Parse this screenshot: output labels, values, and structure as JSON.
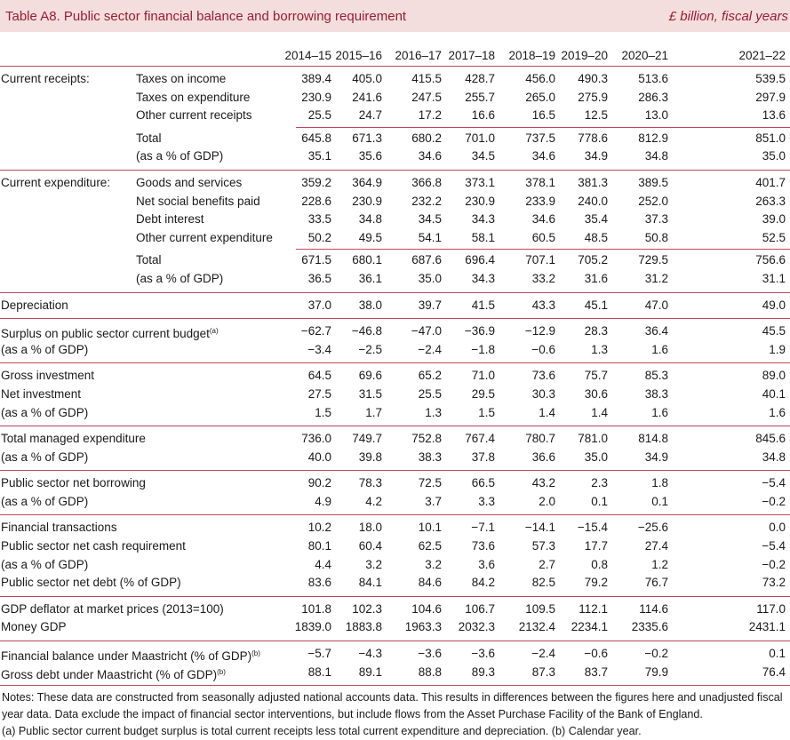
{
  "title": "Table A8. Public sector financial balance and borrowing requirement",
  "unit": "£ billion, fiscal years",
  "years": [
    "2014–15",
    "2015–16",
    "2016–17",
    "2017–18",
    "2018–19",
    "2019–20",
    "2020–21",
    "2021–22"
  ],
  "groups": [
    {
      "rows": [
        {
          "label": "Current receipts:",
          "sublabel": "Taxes on income",
          "values": [
            "389.4",
            "405.0",
            "415.5",
            "428.7",
            "456.0",
            "490.3",
            "513.6",
            "539.5"
          ]
        },
        {
          "sublabel": "Taxes on expenditure",
          "values": [
            "230.9",
            "241.6",
            "247.5",
            "255.7",
            "265.0",
            "275.9",
            "286.3",
            "297.9"
          ]
        },
        {
          "sublabel": "Other current receipts",
          "values": [
            "25.5",
            "24.7",
            "17.2",
            "16.6",
            "16.5",
            "12.5",
            "13.0",
            "13.6"
          ]
        },
        {
          "sublabel": "Total",
          "total": true,
          "values": [
            "645.8",
            "671.3",
            "680.2",
            "701.0",
            "737.5",
            "778.6",
            "812.9",
            "851.0"
          ]
        },
        {
          "sublabel": "(as a % of GDP)",
          "values": [
            "35.1",
            "35.6",
            "34.6",
            "34.5",
            "34.6",
            "34.9",
            "34.8",
            "35.0"
          ]
        }
      ]
    },
    {
      "rows": [
        {
          "label": "Current expenditure:",
          "sublabel": "Goods and services",
          "values": [
            "359.2",
            "364.9",
            "366.8",
            "373.1",
            "378.1",
            "381.3",
            "389.5",
            "401.7"
          ]
        },
        {
          "sublabel": "Net social benefits paid",
          "values": [
            "228.6",
            "230.9",
            "232.2",
            "230.9",
            "233.9",
            "240.0",
            "252.0",
            "263.3"
          ]
        },
        {
          "sublabel": "Debt interest",
          "values": [
            "33.5",
            "34.8",
            "34.5",
            "34.3",
            "34.6",
            "35.4",
            "37.3",
            "39.0"
          ]
        },
        {
          "sublabel": "Other current expenditure",
          "values": [
            "50.2",
            "49.5",
            "54.1",
            "58.1",
            "60.5",
            "48.5",
            "50.8",
            "52.5"
          ]
        },
        {
          "sublabel": "Total",
          "total": true,
          "values": [
            "671.5",
            "680.1",
            "687.6",
            "696.4",
            "707.1",
            "705.2",
            "729.5",
            "756.6"
          ]
        },
        {
          "sublabel": "(as a % of GDP)",
          "values": [
            "36.5",
            "36.1",
            "35.0",
            "34.3",
            "33.2",
            "31.6",
            "31.2",
            "31.1"
          ]
        }
      ]
    },
    {
      "rows": [
        {
          "label": "Depreciation",
          "values": [
            "37.0",
            "38.0",
            "39.7",
            "41.5",
            "43.3",
            "45.1",
            "47.0",
            "49.0"
          ]
        }
      ]
    },
    {
      "rows": [
        {
          "label": "Surplus on public sector current budget",
          "sup": "(a)",
          "values": [
            "−62.7",
            "−46.8",
            "−47.0",
            "−36.9",
            "−12.9",
            "28.3",
            "36.4",
            "45.5"
          ]
        },
        {
          "label": "(as a % of GDP)",
          "values": [
            "−3.4",
            "−2.5",
            "−2.4",
            "−1.8",
            "−0.6",
            "1.3",
            "1.6",
            "1.9"
          ]
        }
      ]
    },
    {
      "rows": [
        {
          "label": "Gross investment",
          "values": [
            "64.5",
            "69.6",
            "65.2",
            "71.0",
            "73.6",
            "75.7",
            "85.3",
            "89.0"
          ]
        },
        {
          "label": "Net investment",
          "values": [
            "27.5",
            "31.5",
            "25.5",
            "29.5",
            "30.3",
            "30.6",
            "38.3",
            "40.1"
          ]
        },
        {
          "label": "(as a % of GDP)",
          "values": [
            "1.5",
            "1.7",
            "1.3",
            "1.5",
            "1.4",
            "1.4",
            "1.6",
            "1.6"
          ]
        }
      ]
    },
    {
      "rows": [
        {
          "label": "Total managed expenditure",
          "values": [
            "736.0",
            "749.7",
            "752.8",
            "767.4",
            "780.7",
            "781.0",
            "814.8",
            "845.6"
          ]
        },
        {
          "label": "(as a % of GDP)",
          "values": [
            "40.0",
            "39.8",
            "38.3",
            "37.8",
            "36.6",
            "35.0",
            "34.9",
            "34.8"
          ]
        }
      ]
    },
    {
      "rows": [
        {
          "label": "Public sector net borrowing",
          "values": [
            "90.2",
            "78.3",
            "72.5",
            "66.5",
            "43.2",
            "2.3",
            "1.8",
            "−5.4"
          ]
        },
        {
          "label": "(as a % of GDP)",
          "values": [
            "4.9",
            "4.2",
            "3.7",
            "3.3",
            "2.0",
            "0.1",
            "0.1",
            "−0.2"
          ]
        }
      ]
    },
    {
      "rows": [
        {
          "label": "Financial transactions",
          "values": [
            "10.2",
            "18.0",
            "10.1",
            "−7.1",
            "−14.1",
            "−15.4",
            "−25.6",
            "0.0"
          ]
        },
        {
          "label": "Public sector net cash requirement",
          "values": [
            "80.1",
            "60.4",
            "62.5",
            "73.6",
            "57.3",
            "17.7",
            "27.4",
            "−5.4"
          ]
        },
        {
          "label": "(as a % of GDP)",
          "values": [
            "4.4",
            "3.2",
            "3.2",
            "3.6",
            "2.7",
            "0.8",
            "1.2",
            "−0.2"
          ]
        },
        {
          "label": "Public sector net debt (% of GDP)",
          "values": [
            "83.6",
            "84.1",
            "84.6",
            "84.2",
            "82.5",
            "79.2",
            "76.7",
            "73.2"
          ]
        }
      ]
    },
    {
      "rows": [
        {
          "label": "GDP deflator at market prices (2013=100)",
          "values": [
            "101.8",
            "102.3",
            "104.6",
            "106.7",
            "109.5",
            "112.1",
            "114.6",
            "117.0"
          ]
        },
        {
          "label": "Money GDP",
          "values": [
            "1839.0",
            "1883.8",
            "1963.3",
            "2032.3",
            "2132.4",
            "2234.1",
            "2335.6",
            "2431.1"
          ]
        }
      ]
    },
    {
      "rows": [
        {
          "label": "Financial balance under Maastricht (% of GDP)",
          "sup": "(b)",
          "values": [
            "−5.7",
            "−4.3",
            "−3.6",
            "−3.6",
            "−2.4",
            "−0.6",
            "−0.2",
            "0.1"
          ]
        },
        {
          "label": "Gross debt under Maastricht (% of GDP)",
          "sup": "(b)",
          "values": [
            "88.1",
            "89.1",
            "88.8",
            "89.3",
            "87.3",
            "83.7",
            "79.9",
            "76.4"
          ]
        }
      ]
    }
  ],
  "notes": [
    "Notes: These data are constructed from seasonally adjusted national accounts data. This results in differences between the figures here and unadjusted fiscal year data. Data exclude the impact of financial sector interventions, but include flows from the Asset Purchase Facility of the Bank of England.",
    "(a) Public sector current budget surplus is total current receipts less total current expenditure and depreciation. (b) Calendar year."
  ],
  "colors": {
    "accent": "#9a1c33",
    "band": "#f3dedd",
    "rule": "#c4455b"
  }
}
